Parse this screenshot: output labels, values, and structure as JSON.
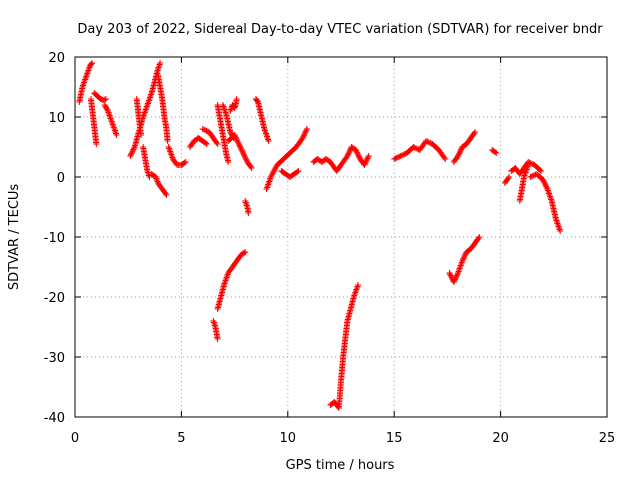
{
  "chart_data": {
    "type": "scatter",
    "title": "Day 203 of 2022, Sidereal Day-to-day VTEC variation (SDTVAR) for receiver bndr",
    "xlabel": "GPS time / hours",
    "ylabel": "SDTVAR / TECUs",
    "xlim": [
      0,
      25
    ],
    "ylim": [
      -40,
      20
    ],
    "xticks": [
      0,
      5,
      10,
      15,
      20,
      25
    ],
    "yticks": [
      -40,
      -30,
      -20,
      -10,
      0,
      10,
      20
    ],
    "x_tick_labels": [
      "0",
      "5",
      "10",
      "15",
      "20",
      "25"
    ],
    "y_tick_labels": [
      "-40",
      "-30",
      "-20",
      "-10",
      "0",
      "10",
      "20"
    ],
    "grid": true,
    "marker": "plus",
    "color": "#ff0000",
    "segments": [
      [
        [
          0.2,
          12.5
        ],
        [
          0.35,
          15
        ],
        [
          0.55,
          17
        ],
        [
          0.7,
          18.5
        ],
        [
          0.8,
          19
        ]
      ],
      [
        [
          0.75,
          13
        ],
        [
          0.85,
          10
        ],
        [
          0.92,
          8
        ],
        [
          1.0,
          5.5
        ]
      ],
      [
        [
          0.9,
          14
        ],
        [
          1.05,
          13.5
        ],
        [
          1.2,
          13
        ],
        [
          1.35,
          12.8
        ],
        [
          1.45,
          13
        ]
      ],
      [
        [
          1.4,
          12
        ],
        [
          1.55,
          11
        ],
        [
          1.7,
          9.5
        ],
        [
          1.85,
          8
        ],
        [
          1.95,
          7
        ]
      ],
      [
        [
          2.6,
          3.5
        ],
        [
          2.8,
          5
        ],
        [
          3.0,
          7.5
        ],
        [
          3.2,
          10
        ],
        [
          3.4,
          12
        ],
        [
          3.6,
          14
        ],
        [
          3.75,
          16
        ],
        [
          3.9,
          18
        ],
        [
          4.0,
          19
        ]
      ],
      [
        [
          2.9,
          13
        ],
        [
          3.0,
          10
        ],
        [
          3.1,
          7
        ]
      ],
      [
        [
          3.2,
          5
        ],
        [
          3.3,
          3
        ],
        [
          3.4,
          1
        ],
        [
          3.5,
          0
        ]
      ],
      [
        [
          3.6,
          0.5
        ],
        [
          3.8,
          0
        ],
        [
          3.9,
          -1
        ],
        [
          4.1,
          -2
        ],
        [
          4.3,
          -3
        ]
      ],
      [
        [
          3.9,
          17
        ],
        [
          4.0,
          15
        ],
        [
          4.1,
          13
        ],
        [
          4.2,
          10
        ],
        [
          4.3,
          8
        ],
        [
          4.35,
          6
        ]
      ],
      [
        [
          4.4,
          5
        ],
        [
          4.6,
          3
        ],
        [
          4.8,
          2
        ],
        [
          5.0,
          2
        ],
        [
          5.2,
          2.5
        ]
      ],
      [
        [
          5.4,
          5
        ],
        [
          5.6,
          6
        ],
        [
          5.8,
          6.5
        ],
        [
          6.0,
          6
        ],
        [
          6.2,
          5.5
        ]
      ],
      [
        [
          6.0,
          8
        ],
        [
          6.3,
          7.5
        ],
        [
          6.5,
          6.5
        ],
        [
          6.7,
          5.5
        ]
      ],
      [
        [
          6.5,
          -24
        ],
        [
          6.6,
          -25
        ],
        [
          6.65,
          -26
        ],
        [
          6.7,
          -27
        ]
      ],
      [
        [
          6.7,
          -22
        ],
        [
          6.85,
          -20
        ],
        [
          7.0,
          -18
        ],
        [
          7.2,
          -16
        ],
        [
          7.4,
          -15
        ],
        [
          7.6,
          -14
        ],
        [
          7.8,
          -13
        ],
        [
          8.0,
          -12.5
        ]
      ],
      [
        [
          6.7,
          12
        ],
        [
          6.8,
          10
        ],
        [
          6.9,
          8
        ],
        [
          7.0,
          6
        ],
        [
          7.1,
          4
        ],
        [
          7.2,
          2.5
        ]
      ],
      [
        [
          6.95,
          12
        ],
        [
          7.1,
          10.5
        ],
        [
          7.2,
          9
        ],
        [
          7.3,
          7.5
        ],
        [
          7.45,
          6.5
        ]
      ],
      [
        [
          7.3,
          11
        ],
        [
          7.4,
          12
        ],
        [
          7.5,
          11.5
        ],
        [
          7.55,
          12
        ],
        [
          7.6,
          13
        ]
      ],
      [
        [
          7.2,
          6
        ],
        [
          7.5,
          7
        ],
        [
          7.7,
          5.5
        ],
        [
          7.9,
          4
        ],
        [
          8.1,
          2.5
        ],
        [
          8.3,
          1.5
        ]
      ],
      [
        [
          8.0,
          -4
        ],
        [
          8.1,
          -5
        ],
        [
          8.15,
          -6
        ]
      ],
      [
        [
          8.5,
          13
        ],
        [
          8.6,
          12.5
        ],
        [
          8.7,
          11
        ],
        [
          8.9,
          8
        ],
        [
          9.1,
          6
        ]
      ],
      [
        [
          9.0,
          -2
        ],
        [
          9.2,
          0
        ],
        [
          9.5,
          2
        ],
        [
          9.8,
          3
        ],
        [
          10.1,
          4
        ],
        [
          10.4,
          5
        ],
        [
          10.7,
          6.5
        ],
        [
          10.9,
          8
        ]
      ],
      [
        [
          9.7,
          1
        ],
        [
          9.9,
          0.5
        ],
        [
          10.1,
          0
        ],
        [
          10.3,
          0.5
        ],
        [
          10.5,
          1
        ]
      ],
      [
        [
          11.2,
          2.5
        ],
        [
          11.4,
          3
        ],
        [
          11.6,
          2.5
        ],
        [
          11.8,
          3
        ],
        [
          12.0,
          2.5
        ],
        [
          12.3,
          1
        ],
        [
          12.5,
          2
        ],
        [
          12.8,
          3.5
        ],
        [
          13.0,
          5
        ],
        [
          13.2,
          4.5
        ],
        [
          13.4,
          3
        ],
        [
          13.6,
          2
        ],
        [
          13.8,
          3.5
        ]
      ],
      [
        [
          12.0,
          -38
        ],
        [
          12.2,
          -37.5
        ],
        [
          12.4,
          -38.5
        ],
        [
          12.5,
          -34
        ],
        [
          12.6,
          -30
        ],
        [
          12.7,
          -27
        ],
        [
          12.8,
          -24
        ],
        [
          12.95,
          -22
        ],
        [
          13.1,
          -20
        ],
        [
          13.3,
          -18
        ]
      ],
      [
        [
          15.0,
          3
        ],
        [
          15.3,
          3.5
        ],
        [
          15.6,
          4
        ],
        [
          15.9,
          5
        ],
        [
          16.2,
          4.5
        ],
        [
          16.5,
          6
        ],
        [
          16.8,
          5.5
        ],
        [
          17.1,
          4.5
        ],
        [
          17.4,
          3
        ]
      ],
      [
        [
          17.6,
          -16
        ],
        [
          17.8,
          -17.5
        ],
        [
          18.0,
          -16
        ],
        [
          18.2,
          -14
        ],
        [
          18.4,
          -12.5
        ],
        [
          18.6,
          -12
        ],
        [
          18.8,
          -11
        ],
        [
          19.0,
          -10
        ]
      ],
      [
        [
          17.8,
          2.5
        ],
        [
          18.0,
          3.5
        ],
        [
          18.2,
          5
        ],
        [
          18.4,
          5.5
        ],
        [
          18.6,
          6.5
        ],
        [
          18.8,
          7.5
        ]
      ],
      [
        [
          19.6,
          4.5
        ],
        [
          19.8,
          4
        ]
      ],
      [
        [
          20.2,
          -1
        ],
        [
          20.4,
          0
        ]
      ],
      [
        [
          20.5,
          1
        ],
        [
          20.7,
          1.5
        ],
        [
          20.9,
          0.5
        ],
        [
          21.1,
          1.5
        ],
        [
          21.3,
          2.5
        ],
        [
          21.6,
          2
        ],
        [
          21.9,
          1
        ]
      ],
      [
        [
          20.9,
          -4
        ],
        [
          21.0,
          -2
        ],
        [
          21.1,
          0
        ],
        [
          21.3,
          2
        ]
      ],
      [
        [
          21.4,
          0
        ],
        [
          21.7,
          0.5
        ],
        [
          22.0,
          -0.5
        ],
        [
          22.2,
          -2
        ],
        [
          22.4,
          -4
        ],
        [
          22.6,
          -7
        ],
        [
          22.8,
          -9
        ]
      ]
    ]
  }
}
